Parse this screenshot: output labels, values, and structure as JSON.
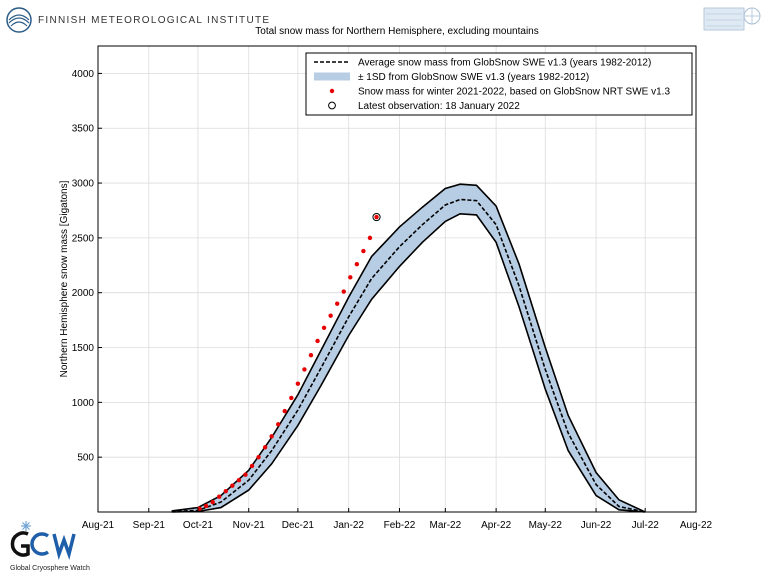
{
  "header": {
    "institute": "FINNISH METEOROLOGICAL INSTITUTE"
  },
  "logos": {
    "fmi": "fmi-logo-icon",
    "globsnow": "globsnow-logo-icon",
    "gcw": "gcw-logo-icon",
    "gcw_tagline": "Global Cryosphere Watch"
  },
  "colors": {
    "band_fill": "#b7cde4",
    "band_edge": "#000000",
    "obs_points": "#e60000",
    "mean_line": "#000000"
  },
  "chart_data": {
    "type": "area",
    "title": "Total snow mass for Northern Hemisphere, excluding mountains",
    "ylabel": "Northern Hemisphere snow mass [Gigatons]",
    "xlabel": "",
    "x_unit": "date",
    "xlim": [
      "2021-08-01",
      "2022-08-01"
    ],
    "ylim": [
      0,
      4250
    ],
    "yticks": [
      500,
      1000,
      1500,
      2000,
      2500,
      3000,
      3500,
      4000
    ],
    "xtick_labels": [
      {
        "date": "2021-08-01",
        "label": "Aug-21"
      },
      {
        "date": "2021-09-01",
        "label": "Sep-21"
      },
      {
        "date": "2021-10-01",
        "label": "Oct-21"
      },
      {
        "date": "2021-11-01",
        "label": "Nov-21"
      },
      {
        "date": "2021-12-01",
        "label": "Dec-21"
      },
      {
        "date": "2022-01-01",
        "label": "Jan-22"
      },
      {
        "date": "2022-02-01",
        "label": "Feb-22"
      },
      {
        "date": "2022-03-01",
        "label": "Mar-22"
      },
      {
        "date": "2022-04-01",
        "label": "Apr-22"
      },
      {
        "date": "2022-05-01",
        "label": "May-22"
      },
      {
        "date": "2022-06-01",
        "label": "Jun-22"
      },
      {
        "date": "2022-07-01",
        "label": "Jul-22"
      },
      {
        "date": "2022-08-01",
        "label": "Aug-22"
      }
    ],
    "grid": true,
    "legend_position": "top-right",
    "legend": [
      {
        "label": "Average snow mass from GlobSnow SWE v1.3 (years 1982-2012)",
        "style": "dashed-line"
      },
      {
        "label": "± 1SD from GlobSnow SWE v1.3 (years 1982-2012)",
        "style": "band"
      },
      {
        "label": "Snow mass for winter 2021-2022, based on GlobSnow NRT SWE v1.3",
        "style": "red-dot"
      },
      {
        "label": "Latest observation: 18 January 2022",
        "style": "open-circle"
      }
    ],
    "series": [
      {
        "name": "Average snow mass from GlobSnow SWE v1.3 (years 1982-2012)",
        "points": [
          [
            "2021-09-15",
            5
          ],
          [
            "2021-10-01",
            15
          ],
          [
            "2021-10-15",
            90
          ],
          [
            "2021-11-01",
            290
          ],
          [
            "2021-11-15",
            560
          ],
          [
            "2021-12-01",
            930
          ],
          [
            "2021-12-15",
            1310
          ],
          [
            "2022-01-01",
            1780
          ],
          [
            "2022-01-15",
            2130
          ],
          [
            "2022-02-01",
            2420
          ],
          [
            "2022-02-15",
            2620
          ],
          [
            "2022-03-01",
            2800
          ],
          [
            "2022-03-10",
            2850
          ],
          [
            "2022-03-20",
            2840
          ],
          [
            "2022-04-01",
            2620
          ],
          [
            "2022-04-15",
            2060
          ],
          [
            "2022-05-01",
            1300
          ],
          [
            "2022-05-15",
            720
          ],
          [
            "2022-06-01",
            250
          ],
          [
            "2022-06-15",
            50
          ],
          [
            "2022-07-01",
            0
          ]
        ]
      },
      {
        "name": "± 1SD from GlobSnow SWE v1.3 (years 1982-2012)",
        "upper": [
          [
            "2021-09-15",
            10
          ],
          [
            "2021-10-01",
            40
          ],
          [
            "2021-10-15",
            150
          ],
          [
            "2021-11-01",
            380
          ],
          [
            "2021-11-15",
            680
          ],
          [
            "2021-12-01",
            1070
          ],
          [
            "2021-12-15",
            1470
          ],
          [
            "2022-01-01",
            1960
          ],
          [
            "2022-01-15",
            2330
          ],
          [
            "2022-02-01",
            2600
          ],
          [
            "2022-02-15",
            2780
          ],
          [
            "2022-03-01",
            2950
          ],
          [
            "2022-03-10",
            2990
          ],
          [
            "2022-03-20",
            2980
          ],
          [
            "2022-04-01",
            2790
          ],
          [
            "2022-04-15",
            2260
          ],
          [
            "2022-05-01",
            1500
          ],
          [
            "2022-05-15",
            880
          ],
          [
            "2022-06-01",
            360
          ],
          [
            "2022-06-15",
            110
          ],
          [
            "2022-07-01",
            0
          ]
        ],
        "lower": [
          [
            "2021-09-15",
            0
          ],
          [
            "2021-10-01",
            5
          ],
          [
            "2021-10-15",
            40
          ],
          [
            "2021-11-01",
            200
          ],
          [
            "2021-11-15",
            440
          ],
          [
            "2021-12-01",
            790
          ],
          [
            "2021-12-15",
            1150
          ],
          [
            "2022-01-01",
            1610
          ],
          [
            "2022-01-15",
            1940
          ],
          [
            "2022-02-01",
            2240
          ],
          [
            "2022-02-15",
            2460
          ],
          [
            "2022-03-01",
            2650
          ],
          [
            "2022-03-10",
            2720
          ],
          [
            "2022-03-20",
            2710
          ],
          [
            "2022-04-01",
            2460
          ],
          [
            "2022-04-15",
            1870
          ],
          [
            "2022-05-01",
            1120
          ],
          [
            "2022-05-15",
            560
          ],
          [
            "2022-06-01",
            150
          ],
          [
            "2022-06-15",
            20
          ],
          [
            "2022-07-01",
            0
          ]
        ]
      },
      {
        "name": "Snow mass for winter 2021-2022, based on GlobSnow NRT SWE v1.3",
        "points": [
          [
            "2021-10-02",
            30
          ],
          [
            "2021-10-06",
            55
          ],
          [
            "2021-10-10",
            90
          ],
          [
            "2021-10-14",
            140
          ],
          [
            "2021-10-18",
            190
          ],
          [
            "2021-10-22",
            240
          ],
          [
            "2021-10-26",
            290
          ],
          [
            "2021-10-30",
            340
          ],
          [
            "2021-11-03",
            420
          ],
          [
            "2021-11-07",
            500
          ],
          [
            "2021-11-11",
            590
          ],
          [
            "2021-11-15",
            690
          ],
          [
            "2021-11-19",
            800
          ],
          [
            "2021-11-23",
            920
          ],
          [
            "2021-11-27",
            1040
          ],
          [
            "2021-12-01",
            1170
          ],
          [
            "2021-12-05",
            1300
          ],
          [
            "2021-12-09",
            1430
          ],
          [
            "2021-12-13",
            1560
          ],
          [
            "2021-12-17",
            1680
          ],
          [
            "2021-12-21",
            1790
          ],
          [
            "2021-12-25",
            1900
          ],
          [
            "2021-12-29",
            2010
          ],
          [
            "2022-01-02",
            2140
          ],
          [
            "2022-01-06",
            2260
          ],
          [
            "2022-01-10",
            2380
          ],
          [
            "2022-01-14",
            2500
          ],
          [
            "2022-01-18",
            2690
          ]
        ]
      }
    ],
    "latest_observation": {
      "date": "2022-01-18",
      "value": 2690
    }
  }
}
